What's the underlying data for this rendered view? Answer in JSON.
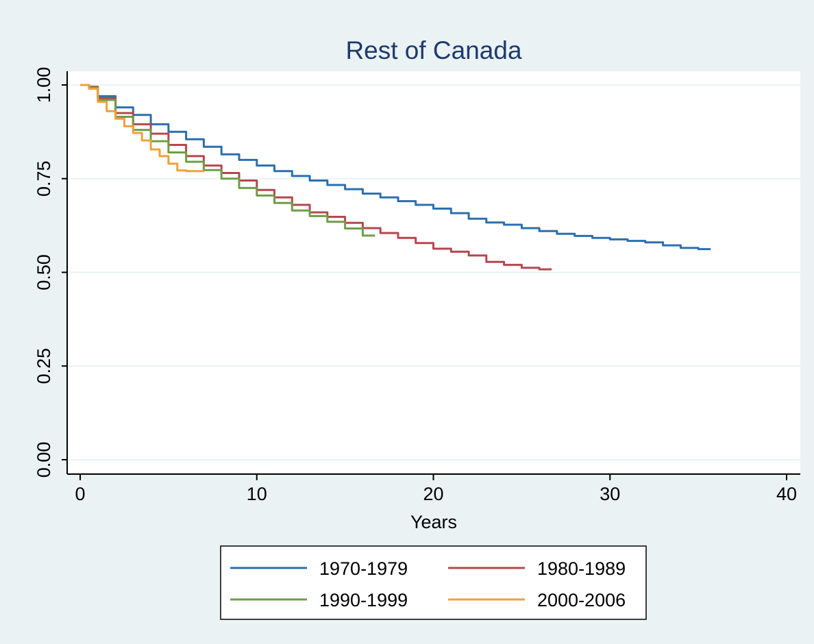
{
  "colors": {
    "outer_bg": "#EAF2F3",
    "plot_bg": "#FFFFFF",
    "grid": "#EAF2F3",
    "axis": "#000000",
    "title": "#1E3A6E",
    "text": "#000000"
  },
  "chart_data": {
    "type": "line",
    "subtype": "step",
    "title": "Rest of Canada",
    "xlabel": "Years",
    "ylabel": "",
    "xlim": [
      0,
      40
    ],
    "ylim": [
      0,
      1
    ],
    "xticks": [
      0,
      10,
      20,
      30,
      40
    ],
    "xtick_labels": [
      "0",
      "10",
      "20",
      "30",
      "40"
    ],
    "yticks": [
      0,
      0.25,
      0.5,
      0.75,
      1
    ],
    "ytick_labels": [
      "0.00",
      "0.25",
      "0.50",
      "0.75",
      "1.00"
    ],
    "grid": "horizontal",
    "legend_position": "bottom",
    "series": [
      {
        "name": "1970-1979",
        "color": "#2C6FAE",
        "x": [
          0,
          0.5,
          1,
          2,
          3,
          4,
          5,
          6,
          7,
          8,
          9,
          10,
          11,
          12,
          13,
          14,
          15,
          16,
          17,
          18,
          19,
          20,
          21,
          22,
          23,
          24,
          25,
          26,
          27,
          28,
          29,
          30,
          31,
          32,
          33,
          34,
          35,
          35.7
        ],
        "y": [
          1.0,
          0.995,
          0.97,
          0.94,
          0.92,
          0.895,
          0.875,
          0.855,
          0.835,
          0.815,
          0.8,
          0.785,
          0.77,
          0.757,
          0.745,
          0.733,
          0.722,
          0.71,
          0.7,
          0.69,
          0.68,
          0.67,
          0.658,
          0.643,
          0.633,
          0.627,
          0.618,
          0.61,
          0.603,
          0.597,
          0.592,
          0.588,
          0.584,
          0.58,
          0.572,
          0.565,
          0.562,
          0.562
        ]
      },
      {
        "name": "1980-1989",
        "color": "#B5474F",
        "x": [
          0,
          0.5,
          1,
          2,
          3,
          4,
          5,
          6,
          7,
          8,
          9,
          10,
          11,
          12,
          13,
          14,
          15,
          16,
          17,
          18,
          19,
          20,
          21,
          22,
          23,
          24,
          25,
          26,
          26.7
        ],
        "y": [
          1.0,
          0.995,
          0.965,
          0.925,
          0.895,
          0.87,
          0.84,
          0.81,
          0.785,
          0.765,
          0.745,
          0.72,
          0.7,
          0.68,
          0.66,
          0.648,
          0.632,
          0.618,
          0.605,
          0.592,
          0.578,
          0.563,
          0.555,
          0.545,
          0.528,
          0.52,
          0.512,
          0.508,
          0.508
        ]
      },
      {
        "name": "1990-1999",
        "color": "#6E9E47",
        "x": [
          0,
          0.5,
          1,
          2,
          3,
          4,
          5,
          6,
          7,
          8,
          9,
          10,
          11,
          12,
          13,
          14,
          15,
          16,
          16.7
        ],
        "y": [
          1.0,
          0.993,
          0.96,
          0.915,
          0.88,
          0.85,
          0.82,
          0.795,
          0.773,
          0.75,
          0.725,
          0.705,
          0.685,
          0.665,
          0.65,
          0.635,
          0.617,
          0.598,
          0.598
        ]
      },
      {
        "name": "2000-2006",
        "color": "#F0A03A",
        "x": [
          0,
          0.5,
          1,
          1.5,
          2,
          2.5,
          3,
          3.5,
          4,
          4.5,
          5,
          5.5,
          6,
          6.5,
          7
        ],
        "y": [
          1.0,
          0.99,
          0.955,
          0.93,
          0.91,
          0.89,
          0.872,
          0.852,
          0.828,
          0.81,
          0.79,
          0.772,
          0.77,
          0.77,
          0.772
        ]
      }
    ]
  }
}
